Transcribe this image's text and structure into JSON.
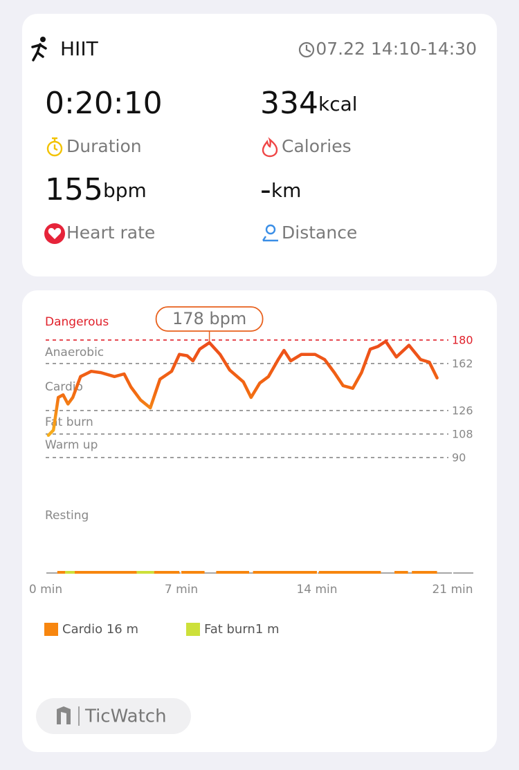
{
  "header": {
    "activity": "HIIT",
    "time": "07.22 14:10-14:30"
  },
  "stats": [
    {
      "value": "0:20:10",
      "label": "Duration"
    },
    {
      "value": "334",
      "unit": "kcal",
      "label": "Calories"
    },
    {
      "value": "155",
      "unit": "bpm",
      "label": "Heart rate"
    },
    {
      "value": "-",
      "unit": "km",
      "label": "Distance"
    }
  ],
  "chart_data": {
    "type": "line",
    "zones": [
      "Dangerous",
      "Anaerobic",
      "Cardio",
      "Fat burn",
      "Warm up",
      "Resting"
    ],
    "danger_color": "#e0202a",
    "xlim": [
      0,
      21
    ],
    "ylim": [
      0,
      190
    ],
    "xticks": [
      {
        "value": 0,
        "label": "0 min"
      },
      {
        "value": 7,
        "label": "7 min"
      },
      {
        "value": 14,
        "label": "14 min"
      },
      {
        "value": 21,
        "label": "21 min"
      }
    ],
    "yticks": [
      90,
      108,
      126,
      162,
      180
    ],
    "x": [
      0.14,
      0.4,
      0.65,
      0.9,
      1.15,
      1.4,
      1.8,
      2.35,
      2.85,
      3.55,
      4.05,
      4.4,
      4.9,
      5.4,
      5.9,
      6.5,
      6.9,
      7.3,
      7.6,
      7.95,
      8.45,
      9,
      9.5,
      10.2,
      10.6,
      11.05,
      11.5,
      12,
      12.3,
      12.65,
      13.2,
      13.9,
      14.4,
      14.9,
      15.35,
      15.85,
      16.3,
      16.75,
      17.15,
      17.55,
      18.1,
      18.75,
      19.35,
      19.8,
      20.2
    ],
    "series": [
      {
        "name": "Heart rate",
        "color": "#ec4a1c",
        "values": [
          107,
          111,
          136,
          138,
          131,
          136,
          152,
          156,
          155,
          152,
          154,
          144,
          134,
          128,
          150,
          156,
          169,
          168,
          164,
          173,
          178,
          169,
          157,
          148,
          136,
          147,
          152,
          165,
          172,
          164,
          169,
          169,
          165,
          155,
          145,
          143,
          155,
          173,
          175,
          179,
          167,
          176,
          165,
          163,
          151
        ]
      }
    ],
    "peak": {
      "x": 8.45,
      "value": 178,
      "label": "178 bpm"
    },
    "legend": [
      {
        "name": "Cardio 16 m",
        "color": "#f7860f"
      },
      {
        "name": "Fat burn1 m",
        "color": "#cde03a"
      }
    ],
    "segments": [
      {
        "start": 0.6,
        "end": 1.0,
        "legend": 0
      },
      {
        "start": 1.0,
        "end": 1.5,
        "legend": 1
      },
      {
        "start": 1.5,
        "end": 4.7,
        "legend": 0
      },
      {
        "start": 4.7,
        "end": 5.6,
        "legend": 1
      },
      {
        "start": 5.6,
        "end": 6.9,
        "legend": 0
      },
      {
        "start": 7.0,
        "end": 8.2,
        "legend": 0
      },
      {
        "start": 8.8,
        "end": 10.5,
        "legend": 0
      },
      {
        "start": 10.7,
        "end": 14.0,
        "legend": 0
      },
      {
        "start": 14.1,
        "end": 17.3,
        "legend": 0
      },
      {
        "start": 18.0,
        "end": 18.7,
        "legend": 0
      },
      {
        "start": 18.9,
        "end": 20.2,
        "legend": 0
      }
    ]
  },
  "footer": {
    "brand": "TicWatch"
  }
}
